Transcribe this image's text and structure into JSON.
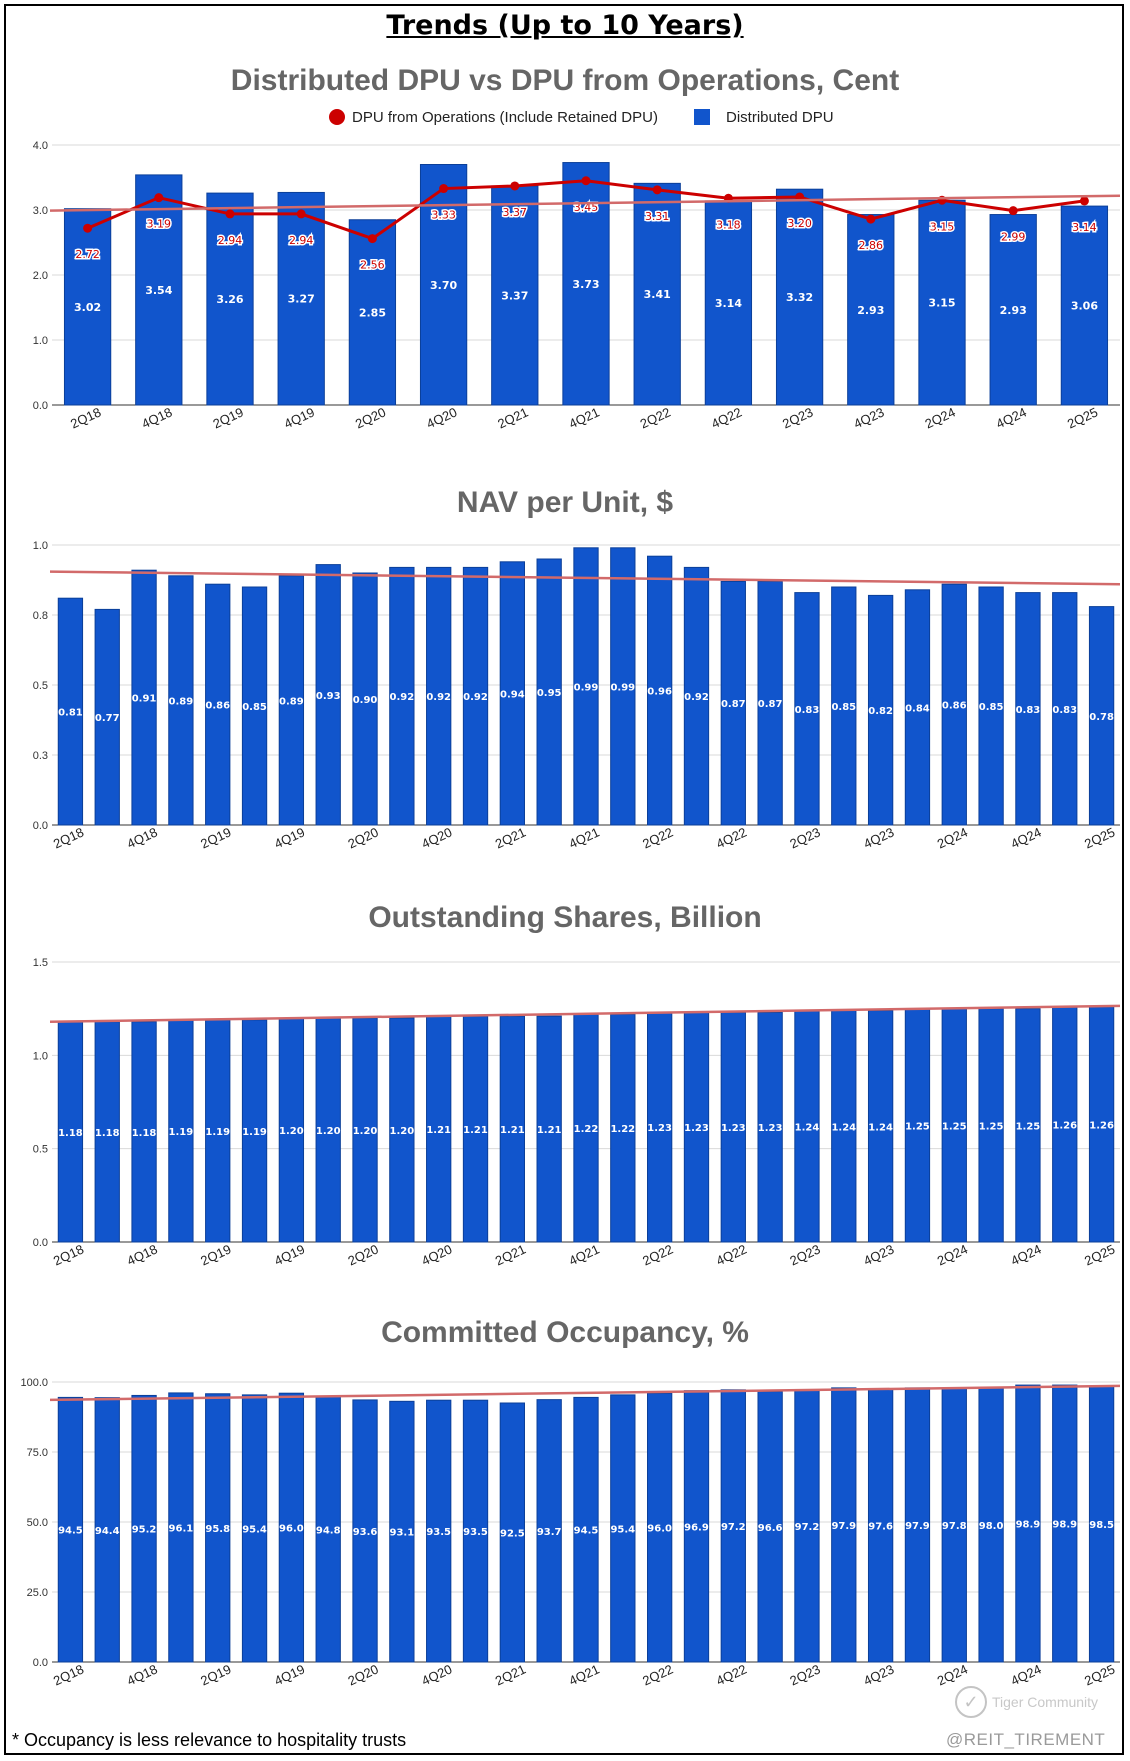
{
  "page": {
    "title": "Trends (Up to 10 Years)",
    "footnote": "* Occupancy is less relevance to hospitality trusts",
    "watermark": {
      "brand": "Tiger Community",
      "handle": "@REIT_TIREMENT"
    }
  },
  "colors": {
    "bar": "#1155cc",
    "line": "#cc0000",
    "trend": "#d26a6a",
    "grid": "#d9d9d9",
    "title": "#666666"
  },
  "chart_data": [
    {
      "type": "bar+line",
      "title": "Distributed DPU vs DPU from Operations, Cent",
      "legend_position": "top",
      "categories": [
        "2Q18",
        "4Q18",
        "2Q19",
        "4Q19",
        "2Q20",
        "4Q20",
        "2Q21",
        "4Q21",
        "2Q22",
        "4Q22",
        "2Q23",
        "4Q23",
        "2Q24",
        "4Q24",
        "2Q25"
      ],
      "series": [
        {
          "name": "DPU from Operations (Include Retained DPU)",
          "kind": "line",
          "values": [
            2.72,
            3.19,
            2.94,
            2.94,
            2.56,
            3.33,
            3.37,
            3.45,
            3.31,
            3.18,
            3.2,
            2.86,
            3.15,
            2.99,
            3.14
          ],
          "labels": [
            "2.72",
            "3.19",
            "2.94",
            "2.94",
            "2.56",
            "3.33",
            "3.37",
            "3.45",
            "3.31",
            "3.18",
            "3.20",
            "2.86",
            "3.15",
            "2.99",
            "3.14"
          ]
        },
        {
          "name": "Distributed DPU",
          "kind": "bar",
          "values": [
            3.02,
            3.54,
            3.26,
            3.27,
            2.85,
            3.7,
            3.37,
            3.73,
            3.41,
            3.14,
            3.32,
            2.93,
            3.15,
            2.93,
            3.06
          ],
          "labels": [
            "3.02",
            "3.54",
            "3.26",
            "3.27",
            "2.85",
            "3.70",
            "3.37",
            "3.73",
            "3.41",
            "3.14",
            "3.32",
            "2.93",
            "3.15",
            "2.93",
            "3.06"
          ]
        }
      ],
      "trendline": [
        2.99,
        3.22
      ],
      "ylim": [
        0,
        4
      ],
      "yticks": [
        "0.0",
        "1.0",
        "2.0",
        "3.0",
        "4.0"
      ],
      "grid": true
    },
    {
      "type": "bar",
      "title": "NAV per Unit, $",
      "categories": [
        "2Q18",
        "",
        "4Q18",
        "",
        "2Q19",
        "",
        "4Q19",
        "",
        "2Q20",
        "",
        "4Q20",
        "",
        "2Q21",
        "",
        "4Q21",
        "",
        "2Q22",
        "",
        "4Q22",
        "",
        "2Q23",
        "",
        "4Q23",
        "",
        "2Q24",
        "",
        "4Q24",
        "",
        "2Q25"
      ],
      "values": [
        0.81,
        0.77,
        0.91,
        0.89,
        0.86,
        0.85,
        0.89,
        0.93,
        0.9,
        0.92,
        0.92,
        0.92,
        0.94,
        0.95,
        0.99,
        0.99,
        0.96,
        0.92,
        0.87,
        0.87,
        0.83,
        0.85,
        0.82,
        0.84,
        0.86,
        0.85,
        0.83,
        0.83,
        0.78
      ],
      "labels": [
        "0.81",
        "0.77",
        "0.91",
        "0.89",
        "0.86",
        "0.85",
        "0.89",
        "0.93",
        "0.90",
        "0.92",
        "0.92",
        "0.92",
        "0.94",
        "0.95",
        "0.99",
        "0.99",
        "0.96",
        "0.92",
        "0.87",
        "0.87",
        "0.83",
        "0.85",
        "0.82",
        "0.84",
        "0.86",
        "0.85",
        "0.83",
        "0.83",
        "0.78"
      ],
      "trendline": [
        0.905,
        0.86
      ],
      "ylim": [
        0,
        1.0
      ],
      "yticks": [
        "0.0",
        "0.3",
        "0.5",
        "0.8",
        "1.0"
      ],
      "grid": true
    },
    {
      "type": "bar",
      "title": "Outstanding Shares, Billion",
      "categories": [
        "2Q18",
        "",
        "4Q18",
        "",
        "2Q19",
        "",
        "4Q19",
        "",
        "2Q20",
        "",
        "4Q20",
        "",
        "2Q21",
        "",
        "4Q21",
        "",
        "2Q22",
        "",
        "4Q22",
        "",
        "2Q23",
        "",
        "4Q23",
        "",
        "2Q24",
        "",
        "4Q24",
        "",
        "2Q25"
      ],
      "values": [
        1.18,
        1.18,
        1.18,
        1.19,
        1.19,
        1.19,
        1.2,
        1.2,
        1.2,
        1.2,
        1.21,
        1.21,
        1.21,
        1.21,
        1.22,
        1.22,
        1.23,
        1.23,
        1.23,
        1.23,
        1.24,
        1.24,
        1.24,
        1.25,
        1.25,
        1.25,
        1.25,
        1.26,
        1.26
      ],
      "labels": [
        "1.18",
        "1.18",
        "1.18",
        "1.19",
        "1.19",
        "1.19",
        "1.20",
        "1.20",
        "1.20",
        "1.20",
        "1.21",
        "1.21",
        "1.21",
        "1.21",
        "1.22",
        "1.22",
        "1.23",
        "1.23",
        "1.23",
        "1.23",
        "1.24",
        "1.24",
        "1.24",
        "1.25",
        "1.25",
        "1.25",
        "1.25",
        "1.26",
        "1.26"
      ],
      "trendline": [
        1.18,
        1.265
      ],
      "ylim": [
        0,
        1.5
      ],
      "yticks": [
        "0.0",
        "0.5",
        "1.0",
        "1.5"
      ],
      "grid": true
    },
    {
      "type": "bar",
      "title": "Committed Occupancy, %",
      "categories": [
        "2Q18",
        "",
        "4Q18",
        "",
        "2Q19",
        "",
        "4Q19",
        "",
        "2Q20",
        "",
        "4Q20",
        "",
        "2Q21",
        "",
        "4Q21",
        "",
        "2Q22",
        "",
        "4Q22",
        "",
        "2Q23",
        "",
        "4Q23",
        "",
        "2Q24",
        "",
        "4Q24",
        "",
        "2Q25"
      ],
      "values": [
        94.5,
        94.4,
        95.2,
        96.1,
        95.8,
        95.4,
        96.0,
        94.8,
        93.6,
        93.1,
        93.5,
        93.5,
        92.5,
        93.7,
        94.5,
        95.4,
        96.0,
        96.9,
        97.2,
        96.6,
        97.2,
        97.9,
        97.6,
        97.9,
        97.8,
        98.0,
        98.9,
        98.9,
        98.5
      ],
      "labels": [
        "94.5",
        "94.4",
        "95.2",
        "96.1",
        "95.8",
        "95.4",
        "96.0",
        "94.8",
        "93.6",
        "93.1",
        "93.5",
        "93.5",
        "92.5",
        "93.7",
        "94.5",
        "95.4",
        "96.0",
        "96.9",
        "97.2",
        "96.6",
        "97.2",
        "97.9",
        "97.6",
        "97.9",
        "97.8",
        "98.0",
        "98.9",
        "98.9",
        "98.5"
      ],
      "trendline": [
        93.6,
        98.6
      ],
      "ylim": [
        0,
        100
      ],
      "yticks": [
        "0.0",
        "25.0",
        "50.0",
        "75.0",
        "100.0"
      ],
      "grid": true
    }
  ]
}
